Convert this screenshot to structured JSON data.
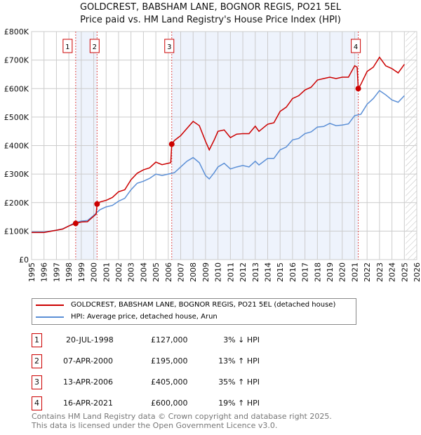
{
  "chart_data": {
    "type": "line",
    "title": "GOLDCREST, BABSHAM LANE, BOGNOR REGIS, PO21 5EL",
    "subtitle": "Price paid vs. HM Land Registry's House Price Index (HPI)",
    "xlim": [
      1995,
      2026
    ],
    "ylim": [
      0,
      800000
    ],
    "x_ticks": [
      "1995",
      "1996",
      "1997",
      "1998",
      "1999",
      "2000",
      "2001",
      "2002",
      "2003",
      "2004",
      "2005",
      "2006",
      "2007",
      "2008",
      "2009",
      "2010",
      "2011",
      "2012",
      "2013",
      "2014",
      "2015",
      "2016",
      "2017",
      "2018",
      "2019",
      "2020",
      "2021",
      "2022",
      "2023",
      "2024",
      "2025",
      "2026"
    ],
    "y_ticks": [
      {
        "v": 0,
        "label": "£0"
      },
      {
        "v": 100000,
        "label": "£100K"
      },
      {
        "v": 200000,
        "label": "£200K"
      },
      {
        "v": 300000,
        "label": "£300K"
      },
      {
        "v": 400000,
        "label": "£400K"
      },
      {
        "v": 500000,
        "label": "£500K"
      },
      {
        "v": 600000,
        "label": "£600K"
      },
      {
        "v": 700000,
        "label": "£700K"
      },
      {
        "v": 800000,
        "label": "£800K"
      }
    ],
    "grid": true,
    "series": [
      {
        "name": "GOLDCREST, BABSHAM LANE, BOGNOR REGIS, PO21 5EL (detached house)",
        "color": "#cc0000",
        "x": [
          1995,
          1996,
          1997,
          1997.5,
          1998,
          1998.55,
          1999,
          1999.5,
          2000.2,
          2000.27,
          2000.5,
          2001,
          2001.5,
          2002,
          2002.5,
          2003,
          2003.5,
          2004,
          2004.5,
          2005,
          2005.5,
          2006.2,
          2006.28,
          2006.5,
          2007,
          2007.5,
          2008,
          2008.5,
          2009,
          2009.3,
          2009.7,
          2010,
          2010.5,
          2011,
          2011.5,
          2012,
          2012.5,
          2013,
          2013.3,
          2014,
          2014.5,
          2015,
          2015.5,
          2016,
          2016.5,
          2017,
          2017.5,
          2018,
          2018.5,
          2019,
          2019.5,
          2020,
          2020.5,
          2021,
          2021.2,
          2021.29,
          2021.5,
          2022,
          2022.5,
          2023,
          2023.5,
          2024,
          2024.5,
          2025
        ],
        "y": [
          95000,
          95000,
          103000,
          107000,
          118000,
          127000,
          132000,
          133000,
          160000,
          195000,
          202000,
          208000,
          218000,
          238000,
          245000,
          280000,
          303000,
          315000,
          322000,
          342000,
          333000,
          340000,
          405000,
          418000,
          435000,
          460000,
          485000,
          470000,
          415000,
          385000,
          420000,
          450000,
          455000,
          428000,
          440000,
          442000,
          442000,
          468000,
          450000,
          475000,
          480000,
          520000,
          535000,
          565000,
          575000,
          595000,
          605000,
          630000,
          635000,
          640000,
          635000,
          640000,
          640000,
          680000,
          675000,
          600000,
          615000,
          660000,
          675000,
          710000,
          680000,
          670000,
          655000,
          685000
        ]
      },
      {
        "name": "HPI: Average price, detached house, Arun",
        "color": "#5b8fd6",
        "x": [
          1995,
          1996,
          1997,
          1997.5,
          1998,
          1998.5,
          1999,
          1999.5,
          2000,
          2000.5,
          2001,
          2001.5,
          2002,
          2002.5,
          2003,
          2003.5,
          2004,
          2004.5,
          2005,
          2005.5,
          2006,
          2006.5,
          2007,
          2007.5,
          2008,
          2008.5,
          2009,
          2009.3,
          2009.7,
          2010,
          2010.5,
          2011,
          2011.5,
          2012,
          2012.5,
          2013,
          2013.3,
          2014,
          2014.5,
          2015,
          2015.5,
          2016,
          2016.5,
          2017,
          2017.5,
          2018,
          2018.5,
          2019,
          2019.5,
          2020,
          2020.5,
          2021,
          2021.5,
          2022,
          2022.5,
          2023,
          2023.5,
          2024,
          2024.5,
          2025
        ],
        "y": [
          97000,
          97000,
          103000,
          108000,
          118000,
          130000,
          135000,
          137000,
          155000,
          175000,
          185000,
          190000,
          205000,
          215000,
          245000,
          268000,
          275000,
          285000,
          300000,
          295000,
          300000,
          305000,
          325000,
          345000,
          358000,
          340000,
          295000,
          283000,
          305000,
          325000,
          338000,
          318000,
          325000,
          330000,
          325000,
          345000,
          332000,
          355000,
          355000,
          385000,
          395000,
          420000,
          425000,
          442000,
          448000,
          465000,
          467000,
          478000,
          470000,
          472000,
          476000,
          505000,
          510000,
          545000,
          565000,
          593000,
          578000,
          560000,
          552000,
          575000
        ]
      }
    ],
    "sales": [
      {
        "n": "1",
        "x": 1998.55,
        "date": "20-JUL-1998",
        "price": "£127,000",
        "value": 127000,
        "hpi": "3% ↓ HPI"
      },
      {
        "n": "2",
        "x": 2000.27,
        "date": "07-APR-2000",
        "price": "£195,000",
        "value": 195000,
        "hpi": "13% ↑ HPI"
      },
      {
        "n": "3",
        "x": 2006.28,
        "date": "13-APR-2006",
        "price": "£405,000",
        "value": 405000,
        "hpi": "35% ↑ HPI"
      },
      {
        "n": "4",
        "x": 2021.29,
        "date": "16-APR-2021",
        "price": "£600,000",
        "value": 600000,
        "hpi": "19% ↑ HPI"
      }
    ],
    "data_end": 2025.1
  },
  "footer": {
    "line1": "Contains HM Land Registry data © Crown copyright and database right 2025.",
    "line2": "This data is licensed under the Open Government Licence v3.0."
  }
}
